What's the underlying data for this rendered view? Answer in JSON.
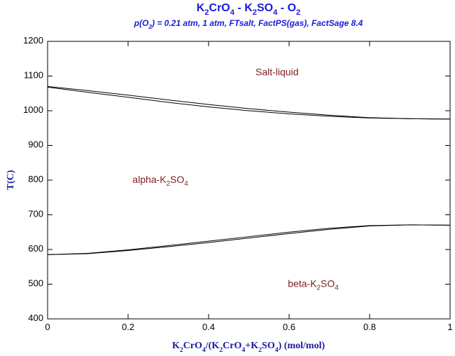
{
  "chart_data": {
    "type": "line",
    "title": "K2CrO4 - K2SO4 - O2",
    "subtitle": "p(O2) = 0.21 atm, 1 atm, FTsalt, FactPS(gas), FactSage 8.4",
    "x_label": "K2CrO4/(K2CrO4+K2SO4) (mol/mol)",
    "y_label": "T(C)",
    "x": [
      0,
      0.1,
      0.2,
      0.3,
      0.4,
      0.5,
      0.6,
      0.7,
      0.8,
      0.9,
      1
    ],
    "series": [
      {
        "color": "#000000",
        "values": [
          1070,
          1058,
          1045,
          1031,
          1018,
          1006,
          996,
          987,
          980,
          977,
          976
        ]
      },
      {
        "color": "#000000",
        "values": [
          1068,
          1053,
          1039,
          1024,
          1011,
          1000,
          991,
          984,
          979,
          977,
          976
        ]
      },
      {
        "color": "#000000",
        "values": [
          585,
          589,
          599,
          611,
          624,
          637,
          650,
          661,
          669,
          671,
          670
        ]
      },
      {
        "color": "#000000",
        "values": [
          585,
          588,
          597,
          608,
          620,
          633,
          646,
          658,
          668,
          671,
          670
        ]
      }
    ],
    "annotations": [
      {
        "text": "Salt-liquid",
        "x": 0.57,
        "y": 1110
      },
      {
        "text": "alpha-K2SO4",
        "x": 0.28,
        "y": 800
      },
      {
        "text": "beta-K2SO4",
        "x": 0.66,
        "y": 500
      }
    ],
    "xlim": [
      0,
      1
    ],
    "xticks": [
      0,
      0.2,
      0.4,
      0.6,
      0.8,
      1
    ],
    "ylim": [
      400,
      1200
    ],
    "yticks": [
      400,
      500,
      600,
      700,
      800,
      900,
      1000,
      1100,
      1200
    ]
  }
}
